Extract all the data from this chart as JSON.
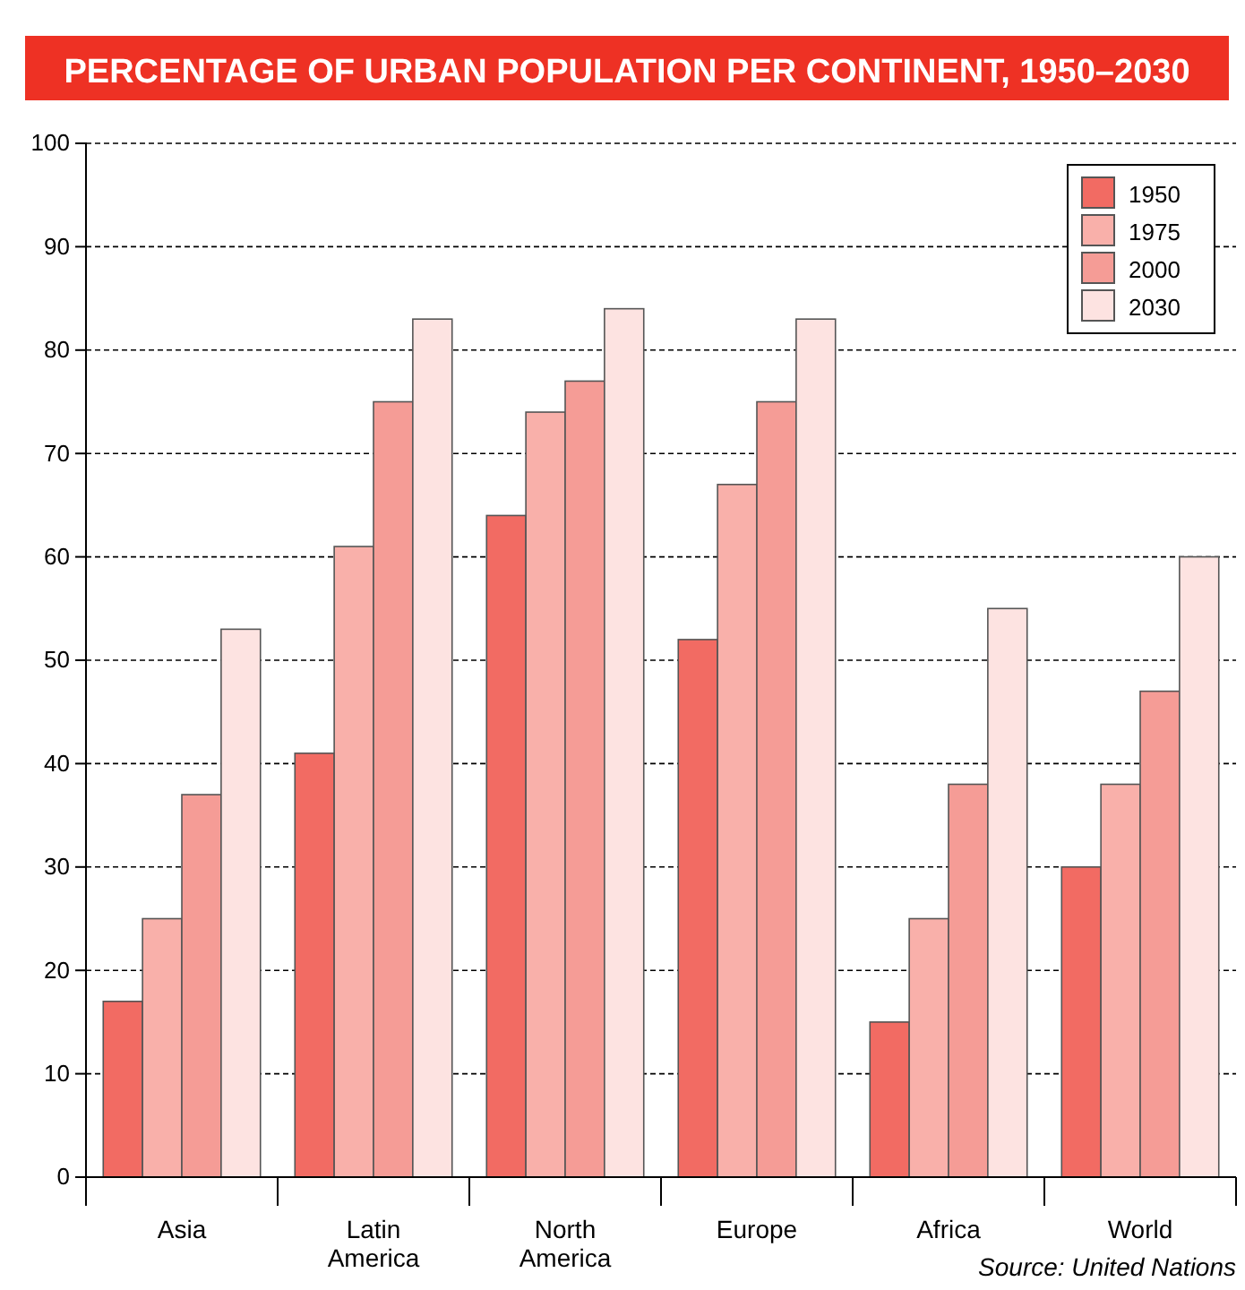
{
  "chart_data": {
    "type": "bar",
    "title": "PERCENTAGE OF URBAN POPULATION PER CONTINENT, 1950–2030",
    "categories": [
      "Asia",
      "Latin\nAmerica",
      "North\nAmerica",
      "Europe",
      "Africa",
      "World"
    ],
    "series": [
      {
        "name": "1950",
        "color": "#f26b63",
        "values": [
          17,
          41,
          64,
          52,
          15,
          30
        ]
      },
      {
        "name": "1975",
        "color": "#f9b0aa",
        "values": [
          25,
          61,
          74,
          67,
          25,
          38
        ]
      },
      {
        "name": "2000",
        "color": "#f59c96",
        "values": [
          37,
          75,
          77,
          75,
          38,
          47
        ]
      },
      {
        "name": "2030",
        "color": "#fde3e1",
        "values": [
          53,
          83,
          84,
          83,
          55,
          60
        ]
      }
    ],
    "ylim": [
      0,
      100
    ],
    "yticks": [
      0,
      10,
      20,
      30,
      40,
      50,
      60,
      70,
      80,
      90,
      100
    ],
    "grid": "y",
    "legend": "top right",
    "annotations": [
      "Source: United Nations"
    ]
  }
}
